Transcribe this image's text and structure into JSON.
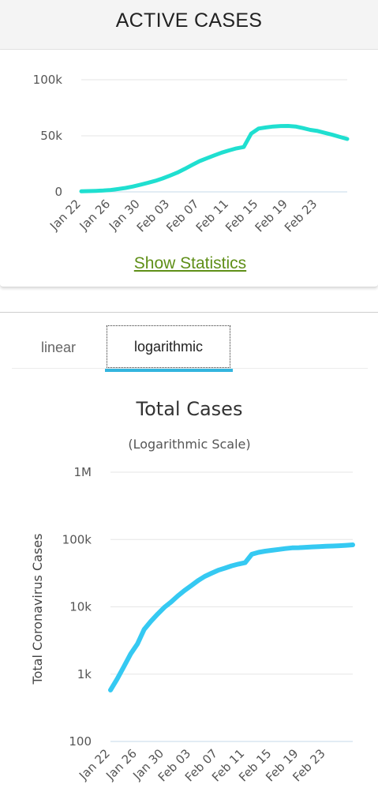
{
  "header": {
    "title": "ACTIVE CASES"
  },
  "active_card": {
    "stats_link": "Show Statistics"
  },
  "tabs": [
    {
      "label": "linear",
      "selected": false
    },
    {
      "label": "logarithmic",
      "selected": true
    }
  ],
  "colors": {
    "active_line": "#1fdfd0",
    "total_line": "#35c9f2",
    "tab_underline": "#33b5de",
    "link": "#5f8f18"
  },
  "chart_data": [
    {
      "type": "line",
      "title": "",
      "grid": true,
      "ylim": [
        0,
        100000
      ],
      "y_ticks": [
        {
          "v": 0,
          "label": "0"
        },
        {
          "v": 50000,
          "label": "50k"
        },
        {
          "v": 100000,
          "label": "100k"
        }
      ],
      "x_ticks": [
        "Jan 22",
        "Jan 26",
        "Jan 30",
        "Feb 03",
        "Feb 07",
        "Feb 11",
        "Feb 15",
        "Feb 19",
        "Feb 23"
      ],
      "x_tick_index": [
        0,
        4,
        8,
        12,
        16,
        20,
        24,
        28,
        32
      ],
      "n_points": 37,
      "series": [
        {
          "values": [
            500,
            700,
            900,
            1200,
            1700,
            2500,
            3500,
            4800,
            6400,
            8000,
            9800,
            12000,
            14500,
            17200,
            20500,
            24000,
            27400,
            30000,
            32500,
            35000,
            37000,
            38800,
            40000,
            52000,
            56500,
            57500,
            58300,
            58700,
            58800,
            58300,
            56900,
            55300,
            54300,
            52600,
            50900,
            49000,
            47200
          ]
        }
      ]
    },
    {
      "type": "line",
      "title": "Total Cases",
      "subtitle": "(Logarithmic Scale)",
      "ylabel": "Total Coronavirus Cases",
      "yscale": "log",
      "grid": true,
      "ylim": [
        100,
        1000000
      ],
      "y_ticks": [
        {
          "v": 100,
          "label": "100"
        },
        {
          "v": 1000,
          "label": "1k"
        },
        {
          "v": 10000,
          "label": "10k"
        },
        {
          "v": 100000,
          "label": "100k"
        },
        {
          "v": 1000000,
          "label": "1M"
        }
      ],
      "x_ticks": [
        "Jan 22",
        "Jan 26",
        "Jan 30",
        "Feb 03",
        "Feb 07",
        "Feb 11",
        "Feb 15",
        "Feb 19",
        "Feb 23"
      ],
      "x_tick_index": [
        0,
        4,
        8,
        12,
        16,
        20,
        24,
        28,
        32
      ],
      "n_points": 37,
      "series": [
        {
          "name": "Cases",
          "values": [
            580,
            850,
            1300,
            2000,
            2800,
            4600,
            6100,
            7800,
            9800,
            11800,
            14500,
            17500,
            20600,
            24500,
            28300,
            31500,
            34900,
            37600,
            40600,
            43100,
            45200,
            60400,
            64500,
            67100,
            69200,
            71300,
            73300,
            75200,
            75700,
            76700,
            77700,
            78600,
            79400,
            80100,
            80800,
            81900,
            83400
          ]
        }
      ]
    }
  ]
}
